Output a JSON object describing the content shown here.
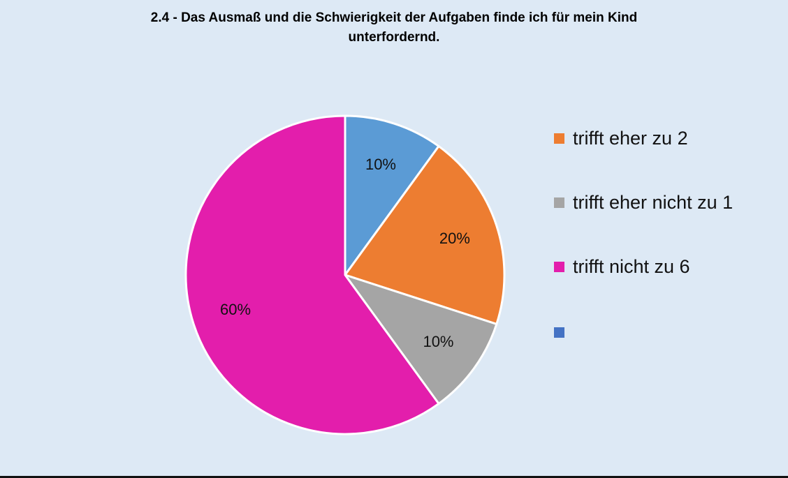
{
  "chart_data": {
    "type": "pie",
    "title": [
      "2.4 - Das Ausmaß und die Schwierigkeit der Aufgaben finde ich für mein Kind",
      "unterfordernd."
    ],
    "slices": [
      {
        "name": "",
        "value": 10,
        "label": "10%",
        "color": "#5b9bd5"
      },
      {
        "name": "trifft eher zu 2",
        "value": 20,
        "label": "20%",
        "color": "#ed7d31"
      },
      {
        "name": "trifft eher nicht  zu 1",
        "value": 10,
        "label": "10%",
        "color": "#a5a5a5"
      },
      {
        "name": "trifft nicht zu 6",
        "value": 60,
        "label": "60%",
        "color": "#e31eac"
      }
    ],
    "legend": [
      {
        "label": "trifft eher zu 2",
        "color": "#ed7d31"
      },
      {
        "label": "trifft eher nicht  zu 1",
        "color": "#a5a5a5"
      },
      {
        "label": "trifft nicht zu 6",
        "color": "#e31eac"
      },
      {
        "label": "",
        "color": "#4472c4"
      }
    ],
    "legend_position": "right"
  }
}
